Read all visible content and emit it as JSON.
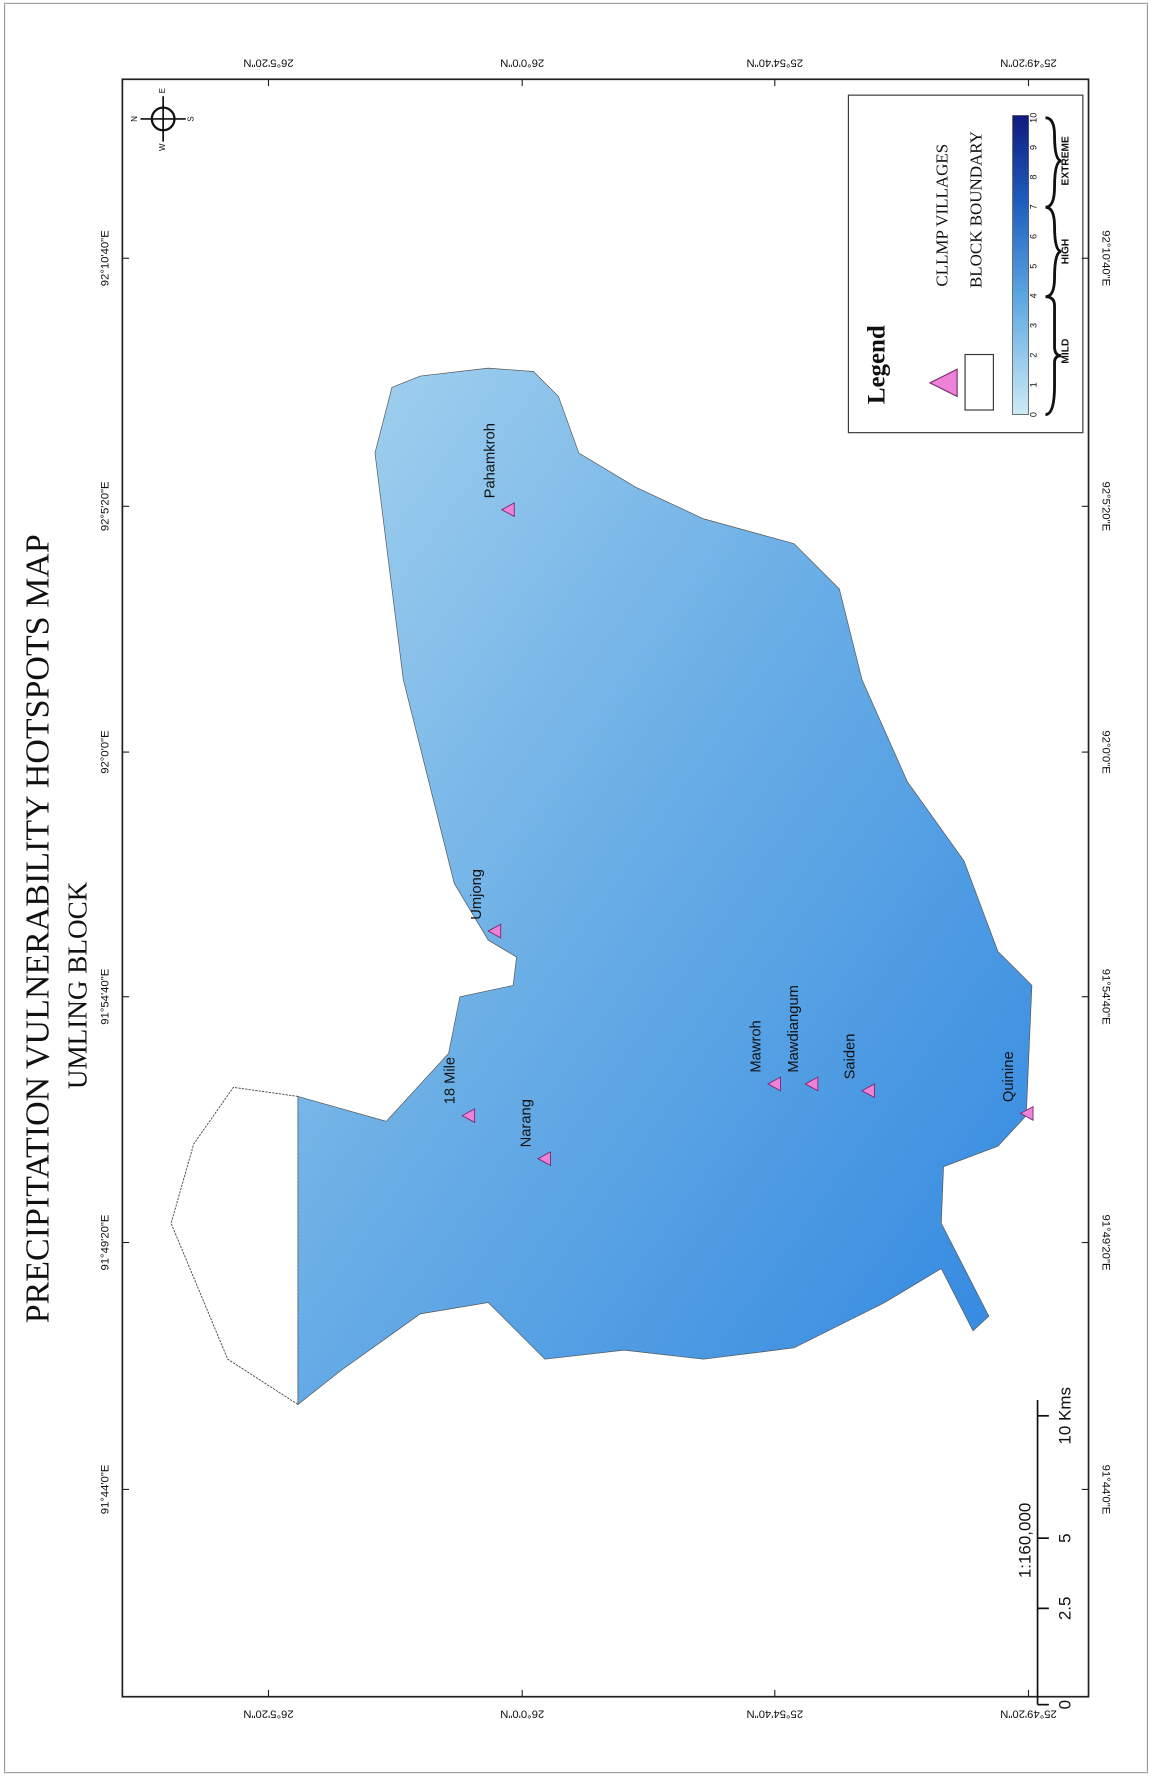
{
  "header": {
    "title": "PRECIPITATION VULNERABILITY HOTSPOTS MAP",
    "subtitle": "UMLING BLOCK"
  },
  "latitude_labels": [
    "26°5'20\"N",
    "26°0'0\"N",
    "25°54'40\"N",
    "25°49'20\"N"
  ],
  "longitude_labels": [
    "92°10'40\"E",
    "92°5'20\"E",
    "92°0'0\"E",
    "91°54'40\"E",
    "91°49'20\"E",
    "91°44'0\"E"
  ],
  "villages": [
    "Pahamkroh",
    "Umjong",
    "18 Mile",
    "Narang",
    "Mawroh",
    "Mawdiangum",
    "Saiden",
    "Quinine"
  ],
  "legend": {
    "title": "Legend",
    "items": [
      "CLLMP VILLAGES",
      "BLOCK BOUNDARY"
    ],
    "ramp_labels": [
      "0",
      "1",
      "2",
      "3",
      "4",
      "5",
      "6",
      "7",
      "8",
      "9",
      "10"
    ],
    "classes": [
      "MILD",
      "HIGH",
      "EXTREME"
    ]
  },
  "scale_bar": {
    "labels": [
      "0",
      "2.5",
      "5",
      "10 Kms"
    ],
    "ratio": "1:160,000"
  },
  "compass": [
    "N",
    "E",
    "S",
    "W"
  ]
}
